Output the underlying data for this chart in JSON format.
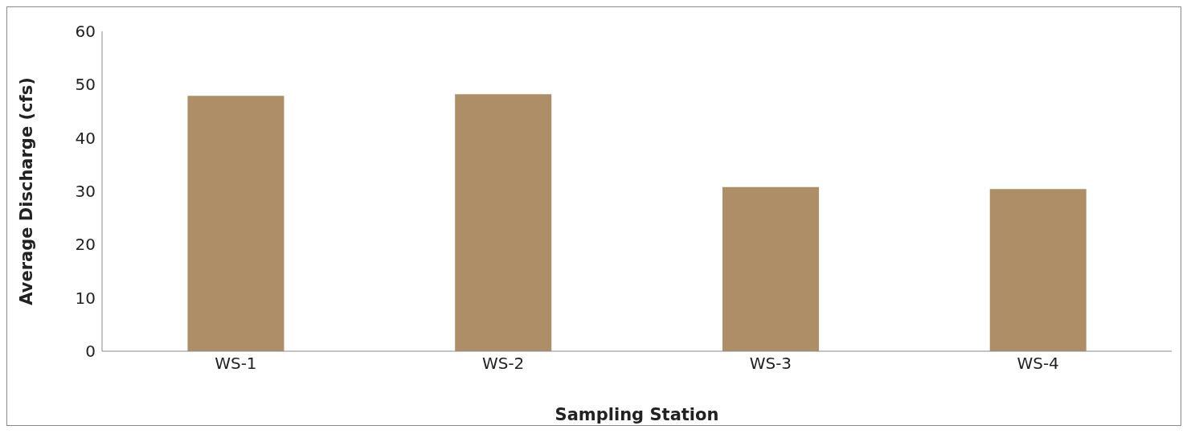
{
  "chart_data": {
    "type": "bar",
    "xlabel": "Sampling Station",
    "ylabel": "Average Discharge (cfs)",
    "categories": [
      "WS-1",
      "WS-2",
      "WS-3",
      "WS-4"
    ],
    "values": [
      47.9,
      48.2,
      30.8,
      30.4
    ],
    "color": "#ad8e66",
    "ylim": [
      0,
      60
    ],
    "yticks": [
      0,
      10,
      20,
      30,
      40,
      50,
      60
    ],
    "grid": false,
    "legend": false
  }
}
